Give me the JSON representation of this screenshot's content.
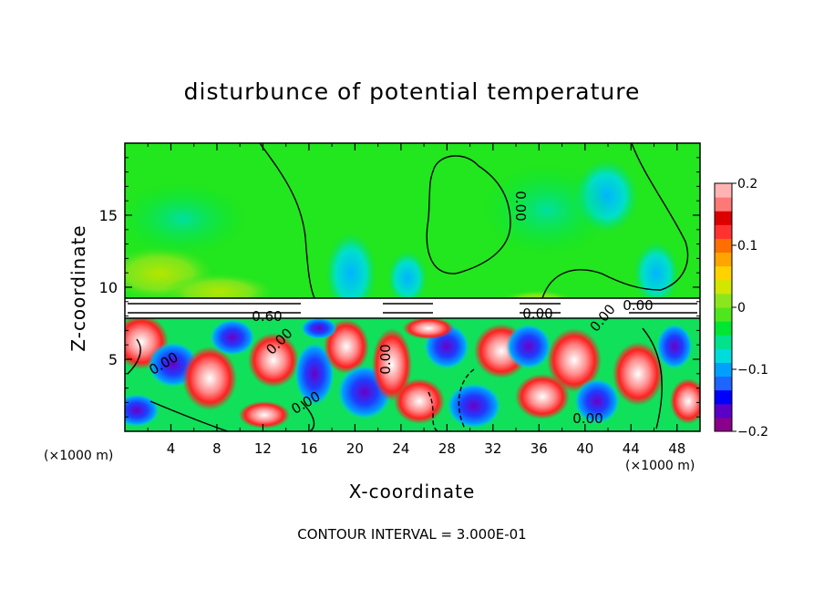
{
  "chart_data": {
    "type": "heatmap",
    "title": "disturbunce of potential temperature",
    "xlabel": "X-coordinate",
    "ylabel": "Z-coordinate",
    "x_unit": "(×1000 m)",
    "x_ticks": [
      4,
      8,
      12,
      16,
      20,
      24,
      28,
      32,
      36,
      40,
      44,
      48
    ],
    "y_ticks": [
      5,
      10,
      15
    ],
    "xlim": [
      0,
      50
    ],
    "ylim": [
      0,
      20
    ],
    "colorbar": {
      "range": [
        -0.2,
        0.2
      ],
      "tick_values": [
        0.2,
        0.1,
        0,
        -0.1,
        -0.2
      ],
      "tick_labels": [
        "0.2",
        "0.1",
        "0",
        "−0.1",
        "−0.2"
      ],
      "colors": [
        "#8b008b",
        "#5a00c8",
        "#0000ff",
        "#1e64ff",
        "#00a0ff",
        "#00dcdc",
        "#00e28c",
        "#00e632",
        "#50e61e",
        "#8ce61e",
        "#d2e600",
        "#ffd200",
        "#ffa500",
        "#ff6e00",
        "#ff3232",
        "#dc0000",
        "#ff7878",
        "#ffb4b4"
      ]
    },
    "contour_labels": [
      "0.60",
      "0.00",
      "0.00",
      "0.00",
      "0.00",
      "0.00",
      "0.00",
      "0.00",
      "0.00",
      "0.00"
    ],
    "contour_interval_text": "CONTOUR INTERVAL = 3.000E-01"
  }
}
